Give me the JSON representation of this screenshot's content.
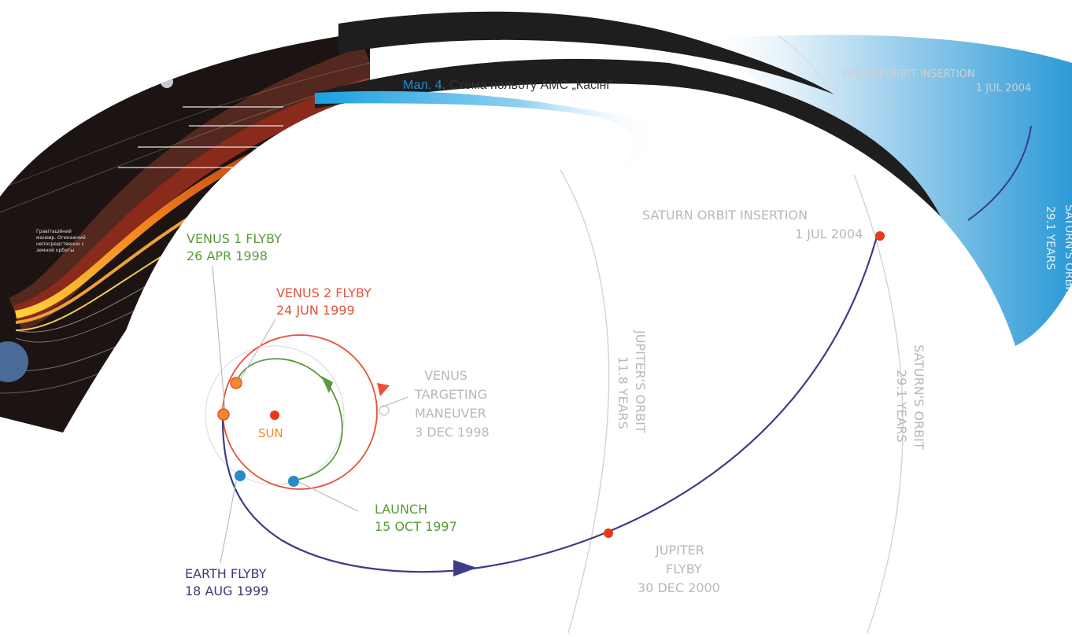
{
  "caption": {
    "figure": "Мал. 4.",
    "text": "Схема польоту АМС „Касіні”"
  },
  "events": {
    "venus1": {
      "title": "VENUS 1 FLYBY",
      "date": "26 APR 1998",
      "color": "#5a9a3c"
    },
    "venus2": {
      "title": "VENUS 2 FLYBY",
      "date": "24 JUN 1999",
      "color": "#e8503a"
    },
    "launch": {
      "title": "LAUNCH",
      "date": "15 OCT 1997",
      "color": "#5a9a3c"
    },
    "earth": {
      "title": "EARTH FLYBY",
      "date": "18 AUG 1999",
      "color": "#3a3a7a"
    },
    "vtm": {
      "line1": "VENUS",
      "line2": "TARGETING",
      "line3": "MANEUVER",
      "date": "3 DEC 1998"
    },
    "jupiter_flyby": {
      "line1": "JUPITER",
      "line2": "FLYBY",
      "date": "30 DEC 2000"
    },
    "soi": {
      "title": "SATURN ORBIT INSERTION",
      "date": "1 JUL 2004"
    }
  },
  "sun_label": "SUN",
  "orbits": {
    "jupiter": {
      "name": "JUPITER'S ORBIT",
      "period": "11.8 YEARS"
    },
    "saturn": {
      "name": "SATURN'S ORBIT",
      "period": "29.1 YEARS"
    }
  },
  "right_inset": {
    "title": "SATURN ORBIT INSERTION",
    "date": "1 JUL 2004",
    "orbit_name": "SATURN'S ORBIT",
    "period": "29.1 YEARS"
  },
  "left_inset": {
    "text_lines": [
      "Гравітаційний",
      "маневр. Огинаючий",
      "непосредственно с",
      "земной орбиты"
    ]
  },
  "colors": {
    "trajectory": "#3c3c8a",
    "venus_green": "#5a9a3c",
    "venus_red": "#e8503a",
    "sun": "#e85a1a",
    "marker_orange": "#f08a2a",
    "marker_blue": "#2a8ac8",
    "marker_red": "#e83a1a",
    "orbit_gray": "#c8c8c8",
    "label_gray": "#b0b0b0",
    "caption_blue": "#1a8fd0",
    "dark_band": "#1e1e1e"
  }
}
